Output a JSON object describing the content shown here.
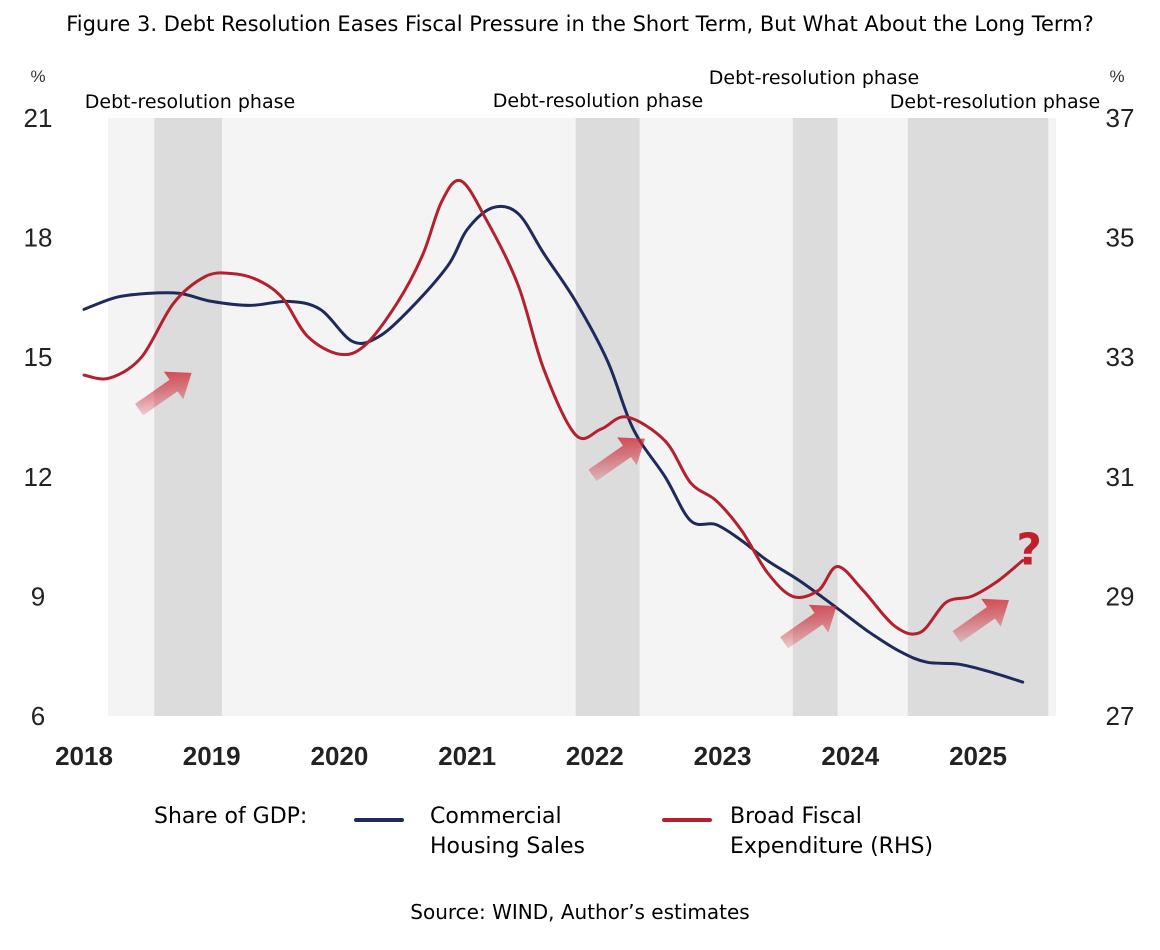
{
  "title": "Figure 3. Debt Resolution Eases Fiscal Pressure in the Short Term, But What About the Long Term?",
  "source": "Source: WIND, Author’s estimates",
  "legend": {
    "prefix": "Share of GDP:",
    "series1": "Commercial\nHousing Sales",
    "series2": "Broad Fiscal\nExpenditure (RHS)"
  },
  "colors": {
    "series1": "#1f2a5c",
    "series2": "#b5202e",
    "shade": "#dcdcdc",
    "arrow": "#cf2a36"
  },
  "chart_data": {
    "type": "line",
    "title": "Figure 3. Debt Resolution Eases Fiscal Pressure in the Short Term, But What About the Long Term?",
    "y_left": {
      "unit": "%",
      "range": [
        6,
        21
      ],
      "ticks": [
        6,
        9,
        12,
        15,
        18,
        21
      ]
    },
    "y_right": {
      "unit": "%",
      "range": [
        27,
        37
      ],
      "ticks": [
        27,
        29,
        31,
        33,
        35,
        37
      ]
    },
    "x_ticks": [
      {
        "label": "2018",
        "x": 2018.0
      },
      {
        "label": "2019",
        "x": 2019.0
      },
      {
        "label": "2020",
        "x": 2020.0
      },
      {
        "label": "2021",
        "x": 2021.0
      },
      {
        "label": "2022",
        "x": 2022.0
      },
      {
        "label": "2023",
        "x": 2023.0
      },
      {
        "label": "2024",
        "x": 2024.0
      },
      {
        "label": "2025",
        "x": 2025.0
      }
    ],
    "x_range": [
      2018.0,
      2025.0
    ],
    "shaded_phases": [
      {
        "label": "Debt-resolution phase",
        "start": 2018.55,
        "end": 2019.08
      },
      {
        "label": "Debt-resolution phase",
        "start": 2021.85,
        "end": 2022.35
      },
      {
        "label": "Debt-resolution phase",
        "start": 2023.55,
        "end": 2023.9
      },
      {
        "label": "Debt-resolution phase",
        "start": 2024.45,
        "end": 2025.55
      }
    ],
    "series": [
      {
        "name": "Commercial Housing Sales",
        "axis": "left",
        "points": [
          [
            2018.0,
            16.2
          ],
          [
            2018.25,
            16.5
          ],
          [
            2018.5,
            16.6
          ],
          [
            2018.75,
            16.6
          ],
          [
            2019.0,
            16.4
          ],
          [
            2019.3,
            16.3
          ],
          [
            2019.6,
            16.4
          ],
          [
            2019.85,
            16.2
          ],
          [
            2020.1,
            15.4
          ],
          [
            2020.3,
            15.5
          ],
          [
            2020.55,
            16.2
          ],
          [
            2020.85,
            17.3
          ],
          [
            2021.0,
            18.2
          ],
          [
            2021.2,
            18.75
          ],
          [
            2021.4,
            18.6
          ],
          [
            2021.6,
            17.6
          ],
          [
            2021.85,
            16.4
          ],
          [
            2022.1,
            14.9
          ],
          [
            2022.3,
            13.2
          ],
          [
            2022.55,
            12.0
          ],
          [
            2022.75,
            10.9
          ],
          [
            2022.95,
            10.8
          ],
          [
            2023.15,
            10.4
          ],
          [
            2023.35,
            9.9
          ],
          [
            2023.6,
            9.4
          ],
          [
            2023.9,
            8.7
          ],
          [
            2024.15,
            8.1
          ],
          [
            2024.4,
            7.6
          ],
          [
            2024.6,
            7.35
          ],
          [
            2024.85,
            7.3
          ],
          [
            2025.1,
            7.1
          ],
          [
            2025.35,
            6.85
          ]
        ]
      },
      {
        "name": "Broad Fiscal Expenditure (RHS)",
        "axis": "right",
        "points": [
          [
            2018.0,
            32.7
          ],
          [
            2018.2,
            32.65
          ],
          [
            2018.45,
            33.0
          ],
          [
            2018.7,
            33.9
          ],
          [
            2018.95,
            34.35
          ],
          [
            2019.15,
            34.4
          ],
          [
            2019.35,
            34.3
          ],
          [
            2019.55,
            34.0
          ],
          [
            2019.75,
            33.35
          ],
          [
            2020.0,
            33.05
          ],
          [
            2020.2,
            33.2
          ],
          [
            2020.45,
            33.9
          ],
          [
            2020.65,
            34.7
          ],
          [
            2020.8,
            35.6
          ],
          [
            2020.95,
            35.95
          ],
          [
            2021.15,
            35.3
          ],
          [
            2021.4,
            34.2
          ],
          [
            2021.6,
            32.8
          ],
          [
            2021.85,
            31.7
          ],
          [
            2022.05,
            31.8
          ],
          [
            2022.25,
            32.0
          ],
          [
            2022.55,
            31.6
          ],
          [
            2022.75,
            30.9
          ],
          [
            2022.95,
            30.6
          ],
          [
            2023.15,
            30.1
          ],
          [
            2023.35,
            29.4
          ],
          [
            2023.55,
            29.0
          ],
          [
            2023.75,
            29.1
          ],
          [
            2023.9,
            29.5
          ],
          [
            2024.1,
            29.1
          ],
          [
            2024.35,
            28.5
          ],
          [
            2024.55,
            28.4
          ],
          [
            2024.75,
            28.9
          ],
          [
            2024.95,
            29.0
          ],
          [
            2025.15,
            29.25
          ],
          [
            2025.35,
            29.6
          ]
        ]
      }
    ],
    "annotations": [
      {
        "text": "?",
        "x": 2025.4,
        "y_right": 29.7
      },
      {
        "type": "arrow",
        "x": 2018.65,
        "y_right": 32.45
      },
      {
        "type": "arrow",
        "x": 2022.2,
        "y_right": 31.35
      },
      {
        "type": "arrow",
        "x": 2023.7,
        "y_right": 28.55
      },
      {
        "type": "arrow",
        "x": 2025.05,
        "y_right": 28.65
      }
    ]
  }
}
